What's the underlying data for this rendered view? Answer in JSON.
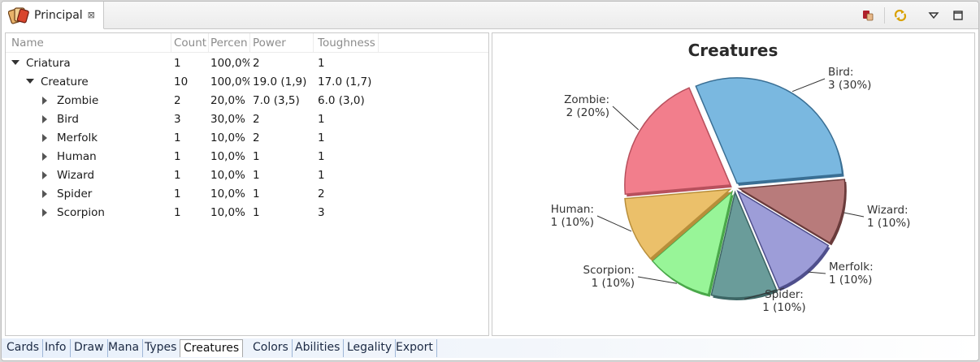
{
  "view": {
    "title": "Principal",
    "close_glyph": "⊠",
    "toolbar_icons": [
      "stop-icon",
      "refresh-icon",
      "view-menu-icon",
      "maximize-icon"
    ]
  },
  "table": {
    "columns": [
      "Name",
      "Count",
      "Percen",
      "Power",
      "Toughness"
    ],
    "rows": [
      {
        "name": "Criatura",
        "count": "1",
        "percent": "100,0%",
        "power": "2",
        "toughness": "1",
        "expanded": true
      },
      {
        "name": "Creature",
        "count": "10",
        "percent": "100,0%",
        "power": "19.0 (1,9)",
        "toughness": "17.0 (1,7)",
        "expanded": true
      },
      {
        "name": "Zombie",
        "count": "2",
        "percent": "20,0%",
        "power": "7.0 (3,5)",
        "toughness": "6.0 (3,0)",
        "expanded": false
      },
      {
        "name": "Bird",
        "count": "3",
        "percent": "30,0%",
        "power": "2",
        "toughness": "1",
        "expanded": false
      },
      {
        "name": "Merfolk",
        "count": "1",
        "percent": "10,0%",
        "power": "2",
        "toughness": "1",
        "expanded": false
      },
      {
        "name": "Human",
        "count": "1",
        "percent": "10,0%",
        "power": "1",
        "toughness": "1",
        "expanded": false
      },
      {
        "name": "Wizard",
        "count": "1",
        "percent": "10,0%",
        "power": "1",
        "toughness": "1",
        "expanded": false
      },
      {
        "name": "Spider",
        "count": "1",
        "percent": "10,0%",
        "power": "1",
        "toughness": "2",
        "expanded": false
      },
      {
        "name": "Scorpion",
        "count": "1",
        "percent": "10,0%",
        "power": "1",
        "toughness": "3",
        "expanded": false
      }
    ]
  },
  "chart_data": {
    "type": "pie",
    "title": "Creatures",
    "slices": [
      {
        "name": "Bird",
        "value": 3,
        "label_line1": "Bird:",
        "label_line2": "3 (30%)",
        "color": "#7ab8e0",
        "edge": "#3a6f94",
        "exploded": true
      },
      {
        "name": "Wizard",
        "value": 1,
        "label_line1": "Wizard:",
        "label_line2": "1 (10%)",
        "color": "#b87b7b",
        "edge": "#6a3b3b",
        "exploded": true
      },
      {
        "name": "Merfolk",
        "value": 1,
        "label_line1": "Merfolk:",
        "label_line2": "1 (10%)",
        "color": "#9d9dd8",
        "edge": "#4f4f8c",
        "exploded": true
      },
      {
        "name": "Spider",
        "value": 1,
        "label_line1": "Spider:",
        "label_line2": "1 (10%)",
        "color": "#6a9c9a",
        "edge": "#3d6665",
        "exploded": true
      },
      {
        "name": "Scorpion",
        "value": 1,
        "label_line1": "Scorpion:",
        "label_line2": "1 (10%)",
        "color": "#98f598",
        "edge": "#4aa84a",
        "exploded": true
      },
      {
        "name": "Human",
        "value": 1,
        "label_line1": "Human:",
        "label_line2": "1 (10%)",
        "color": "#ebc06a",
        "edge": "#b88e3a",
        "exploded": true
      },
      {
        "name": "Zombie",
        "value": 2,
        "label_line1": "Zombie:",
        "label_line2": "2 (20%)",
        "color": "#f27e8c",
        "edge": "#b8505d",
        "exploded": true
      }
    ]
  },
  "bottom_tabs": [
    {
      "label": "Cards",
      "active": false
    },
    {
      "label": "Info",
      "active": false
    },
    {
      "label": "Draw",
      "active": false
    },
    {
      "label": "Mana",
      "active": false
    },
    {
      "label": "Types",
      "active": false
    },
    {
      "label": "Creatures",
      "active": true
    },
    {
      "label": "Colors",
      "active": false
    },
    {
      "label": "Abilities",
      "active": false
    },
    {
      "label": "Legality",
      "active": false
    },
    {
      "label": "Export",
      "active": false
    }
  ]
}
